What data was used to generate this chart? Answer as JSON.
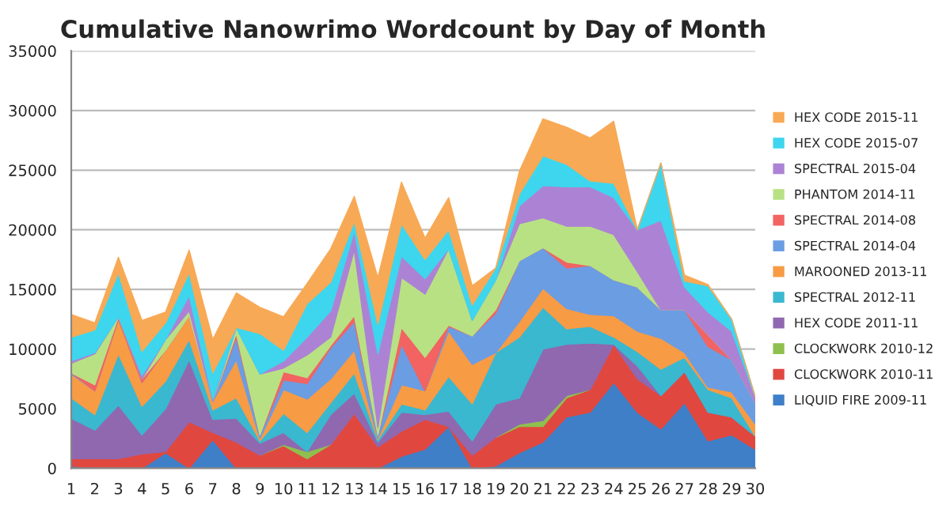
{
  "chart_data": {
    "type": "area",
    "stacked": true,
    "title": "Cumulative Nanowrimo Wordcount by Day of Month",
    "categories": [
      "1",
      "2",
      "3",
      "4",
      "5",
      "6",
      "7",
      "8",
      "9",
      "10",
      "11",
      "12",
      "13",
      "14",
      "15",
      "16",
      "17",
      "18",
      "19",
      "20",
      "21",
      "22",
      "23",
      "24",
      "25",
      "26",
      "27",
      "28",
      "29",
      "30"
    ],
    "ylim": [
      0,
      35000
    ],
    "yticks": [
      0,
      5000,
      10000,
      15000,
      20000,
      25000,
      30000,
      35000
    ],
    "grid": "y",
    "legend": "right",
    "series": [
      {
        "name": "LIQUID FIRE 2009-11",
        "color": "#3f7fc8",
        "values": [
          200,
          0,
          0,
          0,
          1300,
          0,
          2400,
          0,
          0,
          0,
          0,
          0,
          0,
          0,
          1000,
          1600,
          3500,
          0,
          200,
          1300,
          2200,
          4300,
          4700,
          7200,
          4700,
          3300,
          5500,
          2300,
          2800,
          1600
        ]
      },
      {
        "name": "CLOCKWORK 2010-11",
        "color": "#e0483f",
        "values": [
          600,
          800,
          800,
          1200,
          100,
          3900,
          600,
          2200,
          1100,
          1900,
          800,
          2000,
          4600,
          1800,
          2100,
          2500,
          0,
          1100,
          2400,
          2200,
          1300,
          1600,
          1900,
          3200,
          2800,
          2800,
          2600,
          2400,
          1500,
          1100
        ]
      },
      {
        "name": "CLOCKWORK 2010-12",
        "color": "#8fc04f",
        "values": [
          null,
          null,
          null,
          null,
          null,
          null,
          null,
          null,
          0,
          100,
          600,
          0,
          null,
          null,
          null,
          null,
          null,
          null,
          0,
          200,
          500,
          200,
          0,
          null,
          null,
          null,
          null,
          null,
          null,
          null
        ]
      },
      {
        "name": "HEX CODE 2011-11",
        "color": "#9068b0",
        "values": [
          3400,
          2400,
          4500,
          1600,
          3600,
          5200,
          1100,
          2000,
          1000,
          1000,
          0,
          2500,
          1700,
          400,
          1600,
          400,
          1300,
          1200,
          2800,
          2200,
          6000,
          4300,
          3900,
          0,
          1100,
          0,
          0,
          0,
          0,
          0
        ]
      },
      {
        "name": "SPECTRAL 2012-11",
        "color": "#3ab8d0",
        "values": [
          1700,
          1300,
          4300,
          2400,
          2300,
          1700,
          800,
          1700,
          200,
          1600,
          1600,
          1000,
          1700,
          200,
          700,
          400,
          2900,
          3100,
          4300,
          5100,
          3500,
          1300,
          1400,
          600,
          1200,
          2200,
          1200,
          1900,
          1600,
          0
        ]
      },
      {
        "name": "MAROONED 2013-11",
        "color": "#f79b45",
        "values": [
          2000,
          2000,
          2900,
          2000,
          2600,
          2000,
          700,
          3200,
          200,
          2000,
          2800,
          2000,
          1900,
          100,
          1600,
          1600,
          3800,
          3300,
          0,
          1300,
          1600,
          1700,
          1000,
          1800,
          1700,
          2600,
          400,
          200,
          500,
          1000
        ]
      },
      {
        "name": "SPECTRAL 2014-04",
        "color": "#6b9de3",
        "values": [
          100,
          0,
          0,
          0,
          0,
          0,
          0,
          1900,
          300,
          800,
          1300,
          2600,
          2400,
          300,
          3400,
          0,
          400,
          2400,
          3300,
          5100,
          3400,
          3400,
          4100,
          3000,
          3700,
          2400,
          3600,
          3400,
          2700,
          1800
        ]
      },
      {
        "name": "SPECTRAL 2014-08",
        "color": "#f26362",
        "values": [
          0,
          500,
          200,
          300,
          0,
          0,
          0,
          300,
          0,
          700,
          500,
          200,
          500,
          0,
          1400,
          2800,
          100,
          0,
          300,
          0,
          0,
          500,
          0,
          0,
          0,
          0,
          0,
          1000,
          0,
          0
        ]
      },
      {
        "name": "PHANTOM 2014-11",
        "color": "#b8e184",
        "values": [
          800,
          2600,
          0,
          0,
          900,
          400,
          0,
          500,
          5100,
          300,
          1900,
          700,
          5500,
          600,
          4200,
          5300,
          6400,
          1300,
          2500,
          3100,
          2500,
          3000,
          3300,
          3800,
          1300,
          0,
          0,
          0,
          0,
          0
        ]
      },
      {
        "name": "SPECTRAL 2015-04",
        "color": "#ac83d4",
        "values": [
          200,
          100,
          0,
          300,
          0,
          1300,
          200,
          0,
          0,
          600,
          1500,
          2200,
          1600,
          6200,
          1800,
          1300,
          0,
          0,
          0,
          1500,
          2700,
          3300,
          3300,
          3100,
          3500,
          7500,
          1900,
          1900,
          2400,
          500
        ]
      },
      {
        "name": "HEX CODE 2015-07",
        "color": "#3dd6ee",
        "values": [
          2000,
          1900,
          3700,
          2000,
          1400,
          1900,
          2200,
          0,
          3400,
          900,
          2800,
          2400,
          800,
          2500,
          2700,
          1600,
          1600,
          1300,
          1000,
          1000,
          2500,
          1900,
          500,
          1200,
          0,
          4800,
          500,
          2200,
          1000,
          0
        ]
      },
      {
        "name": "HEX CODE 2015-11",
        "color": "#f8a955",
        "values": [
          1900,
          600,
          1300,
          2600,
          900,
          1900,
          2800,
          2900,
          2200,
          2800,
          1700,
          2800,
          2100,
          3900,
          3500,
          1800,
          2700,
          1600,
          0,
          1900,
          3100,
          3100,
          3600,
          5200,
          0,
          0,
          500,
          100,
          0,
          0
        ]
      }
    ]
  }
}
